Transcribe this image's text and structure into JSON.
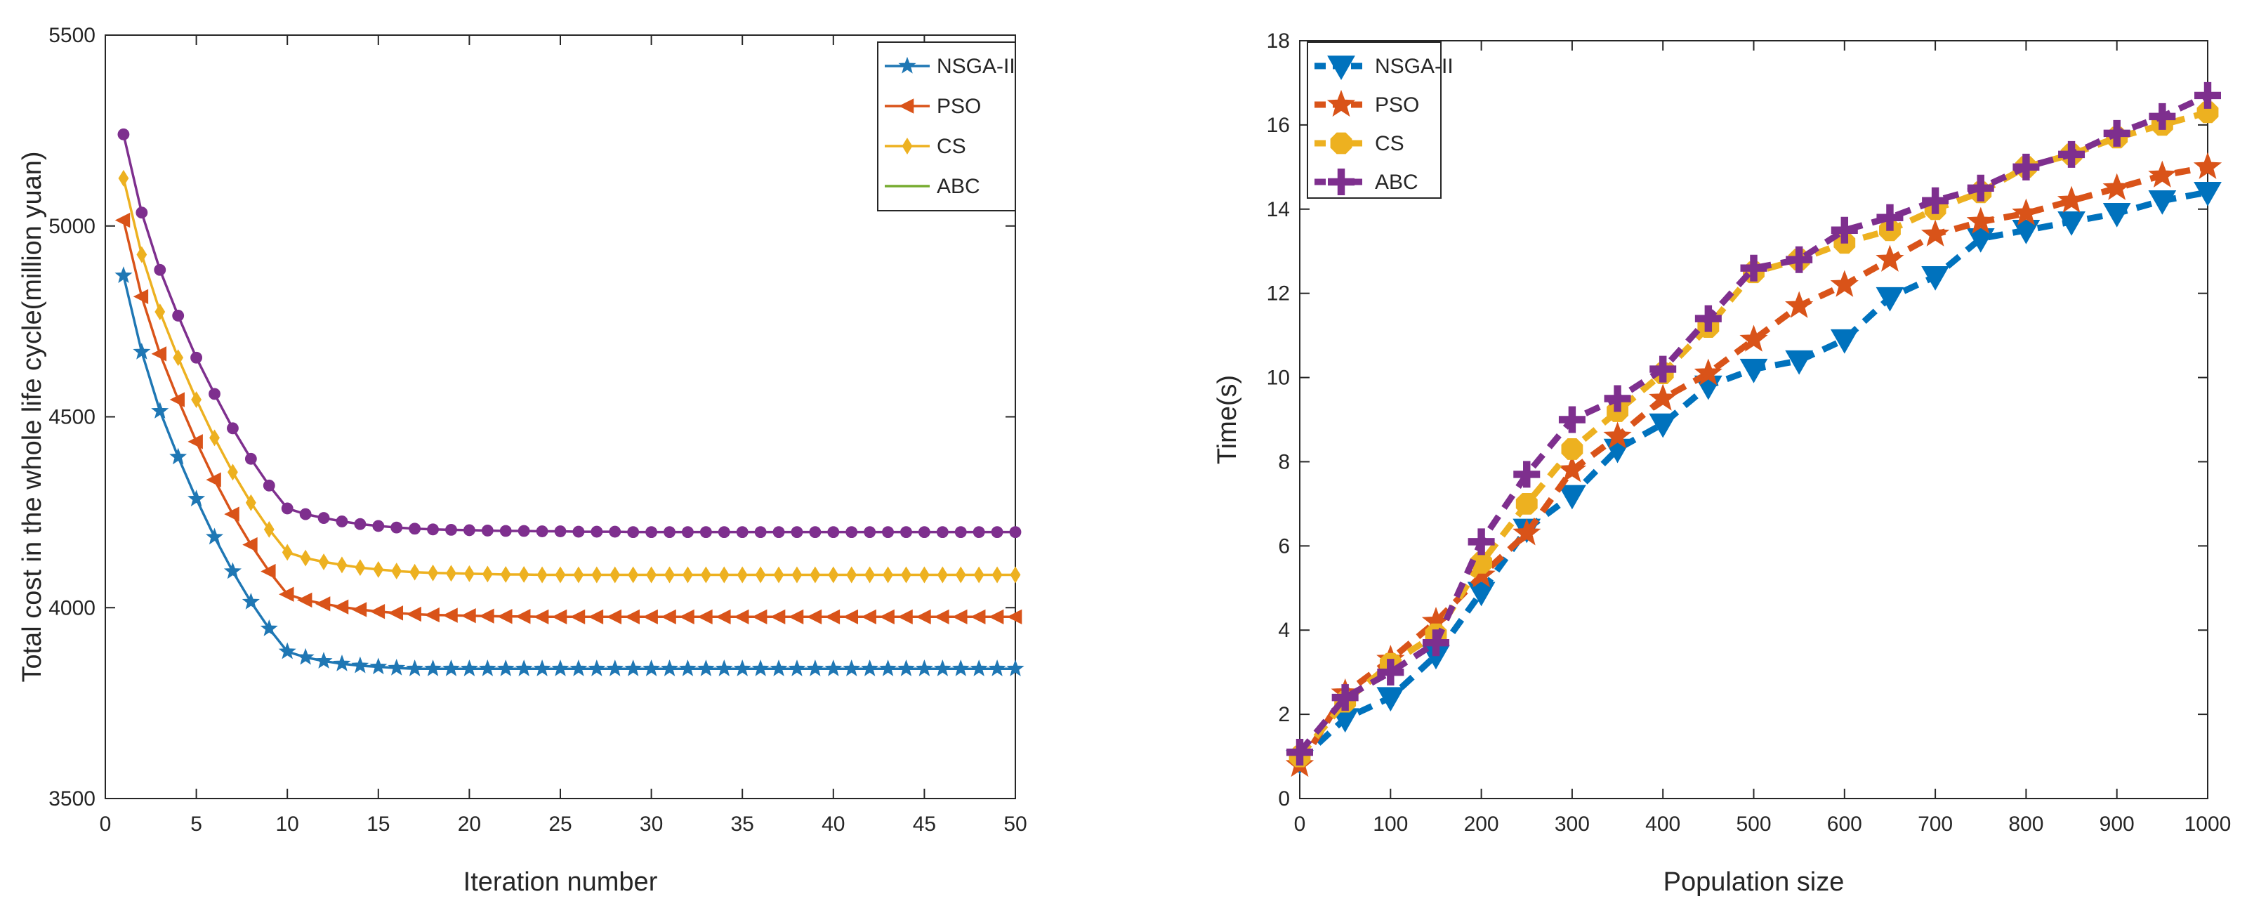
{
  "chart_data": [
    {
      "type": "line",
      "title": "",
      "xlabel": "Iteration number",
      "ylabel": "Total cost in the whole life cycle(million yuan)",
      "xlim": [
        0,
        50
      ],
      "ylim": [
        3500,
        5500
      ],
      "xticks": [
        0,
        5,
        10,
        15,
        20,
        25,
        30,
        35,
        40,
        45,
        50
      ],
      "xtick_labels": [
        "0",
        "5",
        "10",
        "15",
        "20",
        "25",
        "30",
        "35",
        "40",
        "45",
        "50"
      ],
      "yticks": [
        3500,
        4000,
        4500,
        5000,
        5500
      ],
      "ytick_labels": [
        "3500",
        "4000",
        "4500",
        "5000",
        "5500"
      ],
      "grid": false,
      "legend_position": "top-right",
      "x": [
        1,
        2,
        3,
        4,
        5,
        6,
        7,
        8,
        9,
        10,
        11,
        12,
        13,
        14,
        15,
        16,
        17,
        18,
        19,
        20,
        21,
        22,
        23,
        24,
        25,
        26,
        27,
        28,
        29,
        30,
        31,
        32,
        33,
        34,
        35,
        36,
        37,
        38,
        39,
        40,
        41,
        42,
        43,
        44,
        45,
        46,
        47,
        48,
        49,
        50
      ],
      "series": [
        {
          "name": "NSGA-II",
          "color": "#1F77B4",
          "marker": "star",
          "line": "solid",
          "values": [
            4870,
            4670,
            4515,
            4395,
            4285,
            4185,
            4095,
            4015,
            3945,
            3885,
            3870,
            3860,
            3853,
            3848,
            3845,
            3842,
            3840,
            3840,
            3840,
            3840,
            3840,
            3840,
            3840,
            3840,
            3840,
            3840,
            3840,
            3840,
            3840,
            3840,
            3840,
            3840,
            3840,
            3840,
            3840,
            3840,
            3840,
            3840,
            3840,
            3840,
            3840,
            3840,
            3840,
            3840,
            3840,
            3840,
            3840,
            3840,
            3840,
            3840
          ]
        },
        {
          "name": "PSO",
          "color": "#D95319",
          "marker": "triangle-left",
          "line": "solid",
          "values": [
            5015,
            4815,
            4665,
            4545,
            4435,
            4335,
            4245,
            4165,
            4095,
            4035,
            4020,
            4010,
            4002,
            3995,
            3990,
            3986,
            3983,
            3981,
            3980,
            3979,
            3978,
            3977,
            3977,
            3976,
            3976,
            3976,
            3976,
            3976,
            3976,
            3976,
            3976,
            3976,
            3976,
            3976,
            3976,
            3976,
            3976,
            3976,
            3976,
            3976,
            3976,
            3976,
            3976,
            3976,
            3976,
            3976,
            3976,
            3976,
            3976,
            3976
          ]
        },
        {
          "name": "CS",
          "color": "#EDB120",
          "marker": "diamond",
          "line": "solid",
          "values": [
            5125,
            4925,
            4775,
            4655,
            4545,
            4445,
            4355,
            4275,
            4205,
            4145,
            4130,
            4120,
            4112,
            4105,
            4100,
            4096,
            4093,
            4091,
            4090,
            4089,
            4088,
            4087,
            4087,
            4086,
            4086,
            4086,
            4086,
            4086,
            4086,
            4086,
            4086,
            4086,
            4086,
            4086,
            4086,
            4086,
            4086,
            4086,
            4086,
            4086,
            4086,
            4086,
            4086,
            4086,
            4086,
            4086,
            4086,
            4086,
            4086,
            4086
          ]
        },
        {
          "name": "ABC",
          "color": "#7E2F8E",
          "marker": "circle",
          "line": "solid",
          "legend_color": "#77AC30",
          "legend_marker": "none",
          "values": [
            5240,
            5035,
            4885,
            4765,
            4655,
            4560,
            4470,
            4390,
            4320,
            4260,
            4245,
            4235,
            4226,
            4219,
            4214,
            4210,
            4207,
            4205,
            4204,
            4203,
            4202,
            4201,
            4201,
            4200,
            4200,
            4199,
            4199,
            4199,
            4198,
            4198,
            4198,
            4198,
            4198,
            4198,
            4198,
            4198,
            4198,
            4198,
            4198,
            4198,
            4198,
            4198,
            4198,
            4198,
            4198,
            4198,
            4198,
            4198,
            4198,
            4198
          ]
        }
      ]
    },
    {
      "type": "line",
      "title": "",
      "xlabel": "Population size",
      "ylabel": "Time(s)",
      "xlim": [
        0,
        1000
      ],
      "ylim": [
        0,
        18
      ],
      "xticks": [
        0,
        100,
        200,
        300,
        400,
        500,
        600,
        700,
        800,
        900,
        1000
      ],
      "xtick_labels": [
        "0",
        "100",
        "200",
        "300",
        "400",
        "500",
        "600",
        "700",
        "800",
        "900",
        "1000"
      ],
      "yticks": [
        0,
        2,
        4,
        6,
        8,
        10,
        12,
        14,
        16,
        18
      ],
      "ytick_labels": [
        "0",
        "2",
        "4",
        "6",
        "8",
        "10",
        "12",
        "14",
        "16",
        "18"
      ],
      "grid": false,
      "legend_position": "top-left",
      "x": [
        0,
        50,
        100,
        150,
        200,
        250,
        300,
        350,
        400,
        450,
        500,
        550,
        600,
        650,
        700,
        750,
        800,
        850,
        900,
        950,
        1000
      ],
      "series": [
        {
          "name": "NSGA-II",
          "color": "#0072BD",
          "marker": "triangle-down",
          "line": "dashed",
          "values": [
            0.9,
            1.9,
            2.4,
            3.4,
            4.9,
            6.4,
            7.2,
            8.3,
            8.9,
            9.8,
            10.2,
            10.4,
            10.9,
            11.9,
            12.4,
            13.3,
            13.5,
            13.7,
            13.9,
            14.2,
            14.4
          ]
        },
        {
          "name": "PSO",
          "color": "#D95319",
          "marker": "star",
          "line": "dashed",
          "values": [
            0.8,
            2.5,
            3.3,
            4.2,
            5.3,
            6.3,
            7.8,
            8.6,
            9.5,
            10.1,
            10.9,
            11.7,
            12.2,
            12.8,
            13.4,
            13.7,
            13.9,
            14.2,
            14.5,
            14.8,
            15.0
          ]
        },
        {
          "name": "CS",
          "color": "#EDB120",
          "marker": "octagon",
          "line": "dashed",
          "values": [
            1.0,
            2.3,
            3.2,
            3.9,
            5.6,
            7.0,
            8.3,
            9.2,
            10.1,
            11.2,
            12.5,
            12.8,
            13.2,
            13.5,
            14.0,
            14.4,
            15.0,
            15.3,
            15.7,
            16.0,
            16.3
          ]
        },
        {
          "name": "ABC",
          "color": "#7E2F8E",
          "marker": "plus",
          "line": "dashed",
          "values": [
            1.1,
            2.4,
            3.0,
            3.7,
            6.1,
            7.7,
            9.0,
            9.5,
            10.2,
            11.4,
            12.6,
            12.8,
            13.5,
            13.8,
            14.2,
            14.5,
            15.0,
            15.3,
            15.8,
            16.2,
            16.7
          ]
        }
      ]
    }
  ]
}
